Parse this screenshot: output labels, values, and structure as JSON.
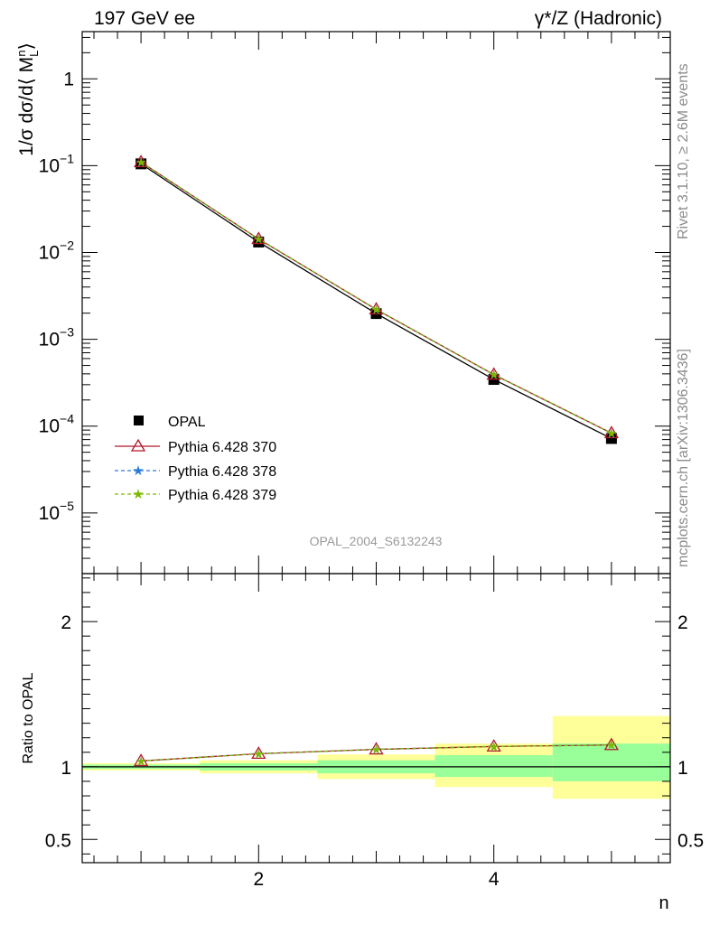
{
  "header": {
    "left": "197 GeV ee",
    "right": "γ*/Z (Hadronic)"
  },
  "side_labels": {
    "top": "Rivet 3.1.10, ≥ 2.6M events",
    "bottom": "mcplots.cern.ch [arXiv:1306.3436]"
  },
  "watermark": "OPAL_2004_S6132243",
  "legend": {
    "data": "OPAL",
    "mc1": "Pythia 6.428 370",
    "mc2": "Pythia 6.428 378",
    "mc3": "Pythia 6.428 379"
  },
  "colors": {
    "data": "#000000",
    "mc1": "#b2182b",
    "mc2": "#2b7bd6",
    "mc3": "#7fb800",
    "band_inner": "#99ff99",
    "band_outer": "#ffff99"
  },
  "chart_data": [
    {
      "type": "line",
      "yscale": "log",
      "xlim": [
        0.5,
        5.5
      ],
      "ylim": [
        2e-06,
        3.5
      ],
      "ylabel": "1/σ dσ/d⟨ M_L^n⟩",
      "yticks": [
        {
          "v": 1e-05,
          "base": "10",
          "exp": "−5"
        },
        {
          "v": 0.0001,
          "base": "10",
          "exp": "−4"
        },
        {
          "v": 0.001,
          "base": "10",
          "exp": "−3"
        },
        {
          "v": 0.01,
          "base": "10",
          "exp": "−2"
        },
        {
          "v": 0.1,
          "base": "10",
          "exp": "−1"
        },
        {
          "v": 1,
          "base": "1",
          "exp": ""
        }
      ],
      "x": [
        1,
        2,
        3,
        4,
        5
      ],
      "series": [
        {
          "name": "OPAL",
          "values": [
            0.105,
            0.0132,
            0.00198,
            0.000345,
            7.2e-05
          ]
        },
        {
          "name": "Pythia 6.428 370",
          "values": [
            0.11,
            0.0143,
            0.00221,
            0.000392,
            8.3e-05
          ]
        },
        {
          "name": "Pythia 6.428 378",
          "values": [
            0.11,
            0.0143,
            0.00221,
            0.000392,
            8.3e-05
          ]
        },
        {
          "name": "Pythia 6.428 379",
          "values": [
            0.11,
            0.0143,
            0.00221,
            0.000392,
            8.3e-05
          ]
        }
      ]
    },
    {
      "type": "line",
      "xlabel": "n",
      "ylabel": "Ratio to OPAL",
      "xlim": [
        0.5,
        5.5
      ],
      "ylim": [
        0.34,
        2.33
      ],
      "xticks": [
        "2",
        "4"
      ],
      "yticks": [
        "0.5",
        "1",
        "2"
      ],
      "x": [
        1,
        2,
        3,
        4,
        5
      ],
      "series": [
        {
          "name": "Pythia 6.428 370",
          "values": [
            1.04,
            1.09,
            1.12,
            1.14,
            1.15
          ]
        },
        {
          "name": "Pythia 6.428 378",
          "values": [
            1.04,
            1.09,
            1.12,
            1.14,
            1.15
          ]
        },
        {
          "name": "Pythia 6.428 379",
          "values": [
            1.04,
            1.09,
            1.12,
            1.14,
            1.15
          ]
        }
      ],
      "bands": [
        {
          "n": 1,
          "inner": [
            0.985,
            1.015
          ],
          "outer": [
            0.975,
            1.025
          ]
        },
        {
          "n": 2,
          "inner": [
            0.975,
            1.025
          ],
          "outer": [
            0.955,
            1.045
          ]
        },
        {
          "n": 3,
          "inner": [
            0.955,
            1.045
          ],
          "outer": [
            0.915,
            1.085
          ]
        },
        {
          "n": 4,
          "inner": [
            0.93,
            1.08
          ],
          "outer": [
            0.86,
            1.16
          ]
        },
        {
          "n": 5,
          "inner": [
            0.9,
            1.16
          ],
          "outer": [
            0.78,
            1.35
          ]
        }
      ]
    }
  ]
}
